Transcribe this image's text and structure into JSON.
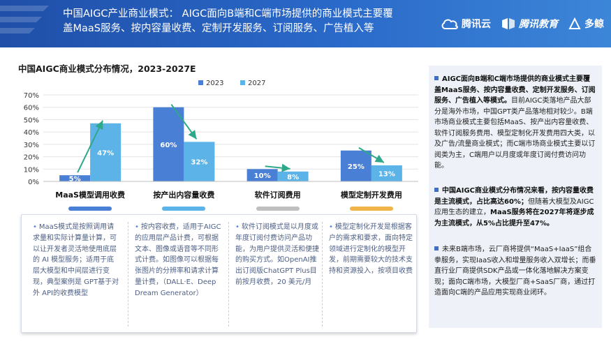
{
  "header": {
    "title": "中国AIGC产业商业模式：   AIGC面向B端和C端市场提供的商业模式主要覆盖MaaS服务、按内容量收费、定制开发服务、订阅服务、广告植入等",
    "logos": [
      {
        "name": "tencent-cloud-logo",
        "text": "腾讯云"
      },
      {
        "name": "tencent-education-logo",
        "text": "腾讯教育"
      },
      {
        "name": "duojing-logo",
        "text": "多鲸"
      }
    ]
  },
  "section_title": "中国AIGC商业模式分布情况，2023-2027E",
  "chart_data": {
    "type": "bar",
    "categories": [
      "MaaS模型调用收费",
      "按产出内容量收费",
      "软件订阅费用",
      "模型定制开发费用"
    ],
    "series": [
      {
        "name": "2023",
        "color": "#4a7fd6",
        "values": [
          5,
          60,
          10,
          25
        ],
        "labels": [
          "5%",
          "60%",
          "10%",
          "25%"
        ]
      },
      {
        "name": "2027",
        "color": "#5bb3e8",
        "values": [
          47,
          32,
          8,
          13
        ],
        "labels": [
          "47%",
          "32%",
          "8%",
          "13%"
        ]
      }
    ],
    "yticks": [
      "0%",
      "10%",
      "20%",
      "30%",
      "40%",
      "50%",
      "60%",
      "70%"
    ],
    "ylim": [
      0,
      70
    ],
    "grid": true,
    "legend": "top-center",
    "arrow_color": "#2fa88a"
  },
  "category_pill_colors": [
    "#4a7fd6",
    "#5bb3e8",
    "#bfbfbf",
    "#f0b549"
  ],
  "descriptions": [
    "MaaS模式是按照调用请求量和实际计算量计算，可以让开发者灵活地使用底层的 AI 模型服务；适用于底层大模型和中间层进行变现，典型案例是 GPT基于对外 API的收费模型",
    "按内容收费，适用于AIGC的应用层产品计费，可根据文本、图像或语音等不同形式计费。如图像可以根据每张图片的分辨率和请求计算量计费，（DALL·E、Deep Dream Generator）",
    "软件订阅模式是以月度或年度订阅付费访问产品功能，为用户提供灵活和便捷的购买方式。如OpenAI推出订阅版ChatGPT Plus目前按月收费，20 美元/月",
    "模型定制化开发是根据客户的需求和要求，面向特定领域进行定制化的模型开发，前期需要较大的技术支持和资源投入，按项目收费"
  ],
  "right_panel": [
    {
      "bold": "AIGC面向B端和C端市场提供的商业模式主要覆盖MaaS服务、按内容量收费、定制开发服务、订阅服务、广告植入等模式。",
      "text": "目前AIGC类落地产品大部分是海外市场，中国GPT类产品落地相对较少。B端市场商业模式主要包括MaaS、按产出内容量收费、软件订阅服务费用、模型定制化开发费用四大类，以及广告/流量商业模式；而C端市场商业模式主要以订阅类为主，C端用户以月度或年度订阅付费访问功能。"
    },
    {
      "bold": "中国AIGC商业模式分布情况来看，按内容量收费是主流模式，占比高达60%；",
      "text": "但随着大模型及AIGC应用生态的建立，",
      "bold2": "MaaS服务将在2027年将逐步成为主流模式，从5%占比提升至47%。"
    },
    {
      "bold": "",
      "text": "未来B端市场，云厂商将提供“MaaS+IaaS”组合拳服务，实现IaaS收入和增量服务收入双增长；而垂直行业厂商提供SDK产品或一体化落地解决方案变现；面向C端市场，大模型厂商+SaaS厂商，通过打造面向C端的产品应用实现商业闭环。"
    }
  ]
}
